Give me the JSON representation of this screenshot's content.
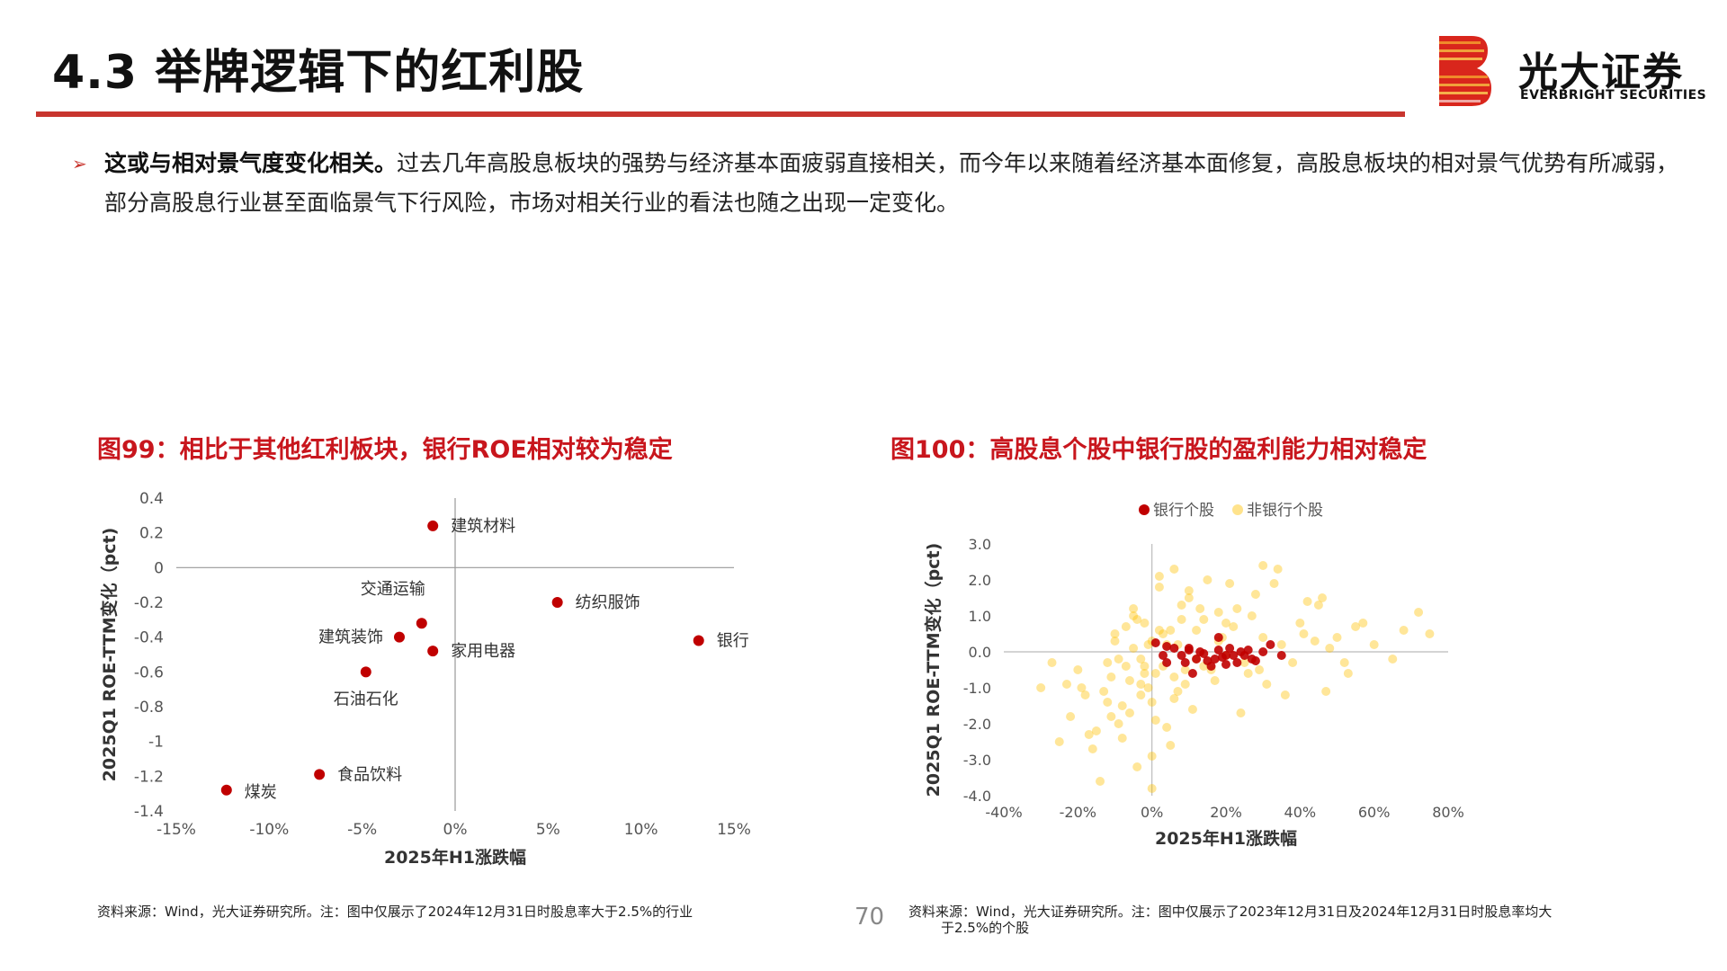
{
  "header": {
    "title": "4.3 举牌逻辑下的红利股",
    "logo_cn": "光大证券",
    "logo_en": "EVERBRIGHT SECURITIES"
  },
  "bullet": {
    "bold": "这或与相对景气度变化相关。",
    "text": "过去几年高股息板块的强势与经济基本面疲弱直接相关，而今年以来随着经济基本面修复，高股息板块的相对景气优势有所减弱，部分高股息行业甚至面临景气下行风险，市场对相关行业的看法也随之出现一定变化。"
  },
  "figure_left": {
    "title": "图99：相比于其他红利板块，银行ROE相对较为稳定",
    "source": "资料来源：Wind，光大证券研究所。注：图中仅展示了2024年12月31日时股息率大于2.5%的行业"
  },
  "figure_right": {
    "title": "图100：高股息个股中银行股的盈利能力相对稳定",
    "source_line1": "资料来源：Wind，光大证券研究所。注：图中仅展示了2023年12月31日及2024年12月31日时股息率均大",
    "source_line2": "于2.5%的个股"
  },
  "page_number": "70",
  "colors": {
    "accent": "#c8352e",
    "fig_title": "#c8161d",
    "bank_point": "#c00000",
    "nonbank_point": "#ffc000"
  },
  "chart_data": [
    {
      "type": "scatter",
      "xlabel": "2025年H1涨跌幅",
      "ylabel": "2025Q1 ROE-TTM变化（pct)",
      "xlim": [
        -0.15,
        0.15
      ],
      "ylim": [
        -1.4,
        0.4
      ],
      "x_ticks": [
        "-15%",
        "-10%",
        "-5%",
        "0%",
        "5%",
        "10%",
        "15%"
      ],
      "y_ticks": [
        "0.4",
        "0.2",
        "0",
        "-0.2",
        "-0.4",
        "-0.6",
        "-0.8",
        "-1",
        "-1.2",
        "-1.4"
      ],
      "points": [
        {
          "label": "建筑材料",
          "x": -0.012,
          "y": 0.24
        },
        {
          "label": "纺织服饰",
          "x": 0.055,
          "y": -0.2
        },
        {
          "label": "交通运输",
          "x": -0.018,
          "y": -0.32
        },
        {
          "label": "建筑装饰",
          "x": -0.03,
          "y": -0.4
        },
        {
          "label": "家用电器",
          "x": -0.012,
          "y": -0.48
        },
        {
          "label": "银行",
          "x": 0.131,
          "y": -0.42
        },
        {
          "label": "石油石化",
          "x": -0.048,
          "y": -0.6
        },
        {
          "label": "食品饮料",
          "x": -0.073,
          "y": -1.19
        },
        {
          "label": "煤炭",
          "x": -0.123,
          "y": -1.28
        }
      ]
    },
    {
      "type": "scatter",
      "xlabel": "2025年H1涨跌幅",
      "ylabel": "2025Q1 ROE-TTM变化（pct)",
      "xlim": [
        -0.4,
        0.8
      ],
      "ylim": [
        -4.0,
        3.0
      ],
      "x_ticks": [
        "-40%",
        "-20%",
        "0%",
        "20%",
        "40%",
        "60%",
        "80%"
      ],
      "y_ticks": [
        "3.0",
        "2.0",
        "1.0",
        "0.0",
        "-1.0",
        "-2.0",
        "-3.0",
        "-4.0"
      ],
      "legend_position": "top-center",
      "series": [
        {
          "name": "银行个股",
          "x": [
            0.01,
            0.04,
            0.06,
            0.08,
            0.1,
            0.11,
            0.12,
            0.14,
            0.15,
            0.17,
            0.18,
            0.19,
            0.2,
            0.21,
            0.23,
            0.24,
            0.25,
            0.26,
            0.28,
            0.3,
            0.32,
            0.35,
            0.04,
            0.09,
            0.13,
            0.16,
            0.2,
            0.22,
            0.27,
            0.03,
            0.1,
            0.18
          ],
          "y": [
            0.25,
            -0.3,
            0.1,
            -0.1,
            0.05,
            -0.6,
            -0.2,
            -0.05,
            -0.25,
            -0.2,
            0.4,
            -0.15,
            -0.1,
            0.1,
            -0.3,
            0.0,
            -0.1,
            0.05,
            -0.25,
            0.0,
            0.2,
            -0.1,
            0.15,
            -0.3,
            0.0,
            -0.4,
            -0.35,
            -0.1,
            -0.2,
            -0.1,
            0.1,
            0.05
          ]
        },
        {
          "name": "非银行个股",
          "x": [
            -0.2,
            -0.18,
            -0.15,
            -0.12,
            -0.1,
            -0.08,
            -0.06,
            -0.05,
            -0.04,
            -0.03,
            -0.02,
            -0.01,
            0.0,
            0.01,
            0.02,
            0.03,
            0.05,
            0.06,
            0.07,
            0.09,
            0.1,
            0.12,
            0.14,
            0.16,
            0.18,
            0.2,
            0.22,
            0.25,
            0.28,
            0.3,
            0.33,
            0.36,
            0.4,
            0.45,
            0.5,
            0.52,
            0.55,
            0.6,
            0.65,
            0.72,
            0.75,
            -0.25,
            -0.22,
            -0.16,
            -0.13,
            -0.11,
            -0.09,
            -0.07,
            -0.06,
            -0.04,
            -0.02,
            0.0,
            0.02,
            0.04,
            0.08,
            0.11,
            0.15,
            0.19,
            0.24,
            0.27,
            0.31,
            0.38,
            0.42,
            0.48,
            0.53,
            -0.14,
            -0.1,
            -0.08,
            -0.05,
            -0.03,
            -0.01,
            0.01,
            0.03,
            0.06,
            0.09,
            0.13,
            0.17,
            0.21,
            0.26,
            0.34,
            0.44,
            -0.3,
            -0.27,
            -0.19,
            -0.12,
            -0.07,
            0.0,
            0.05,
            0.12,
            -0.02,
            0.04,
            0.07,
            0.1,
            0.2,
            0.3,
            0.46,
            0.57,
            0.68,
            -0.23,
            -0.17,
            -0.11,
            -0.09,
            -0.05,
            -0.03,
            0.0,
            0.02,
            0.06,
            0.08,
            0.14,
            0.18,
            0.23,
            0.29,
            0.35,
            0.41,
            0.47
          ],
          "y": [
            -0.5,
            -1.2,
            -2.2,
            -0.3,
            0.5,
            -1.5,
            -0.8,
            1.2,
            -3.2,
            -0.2,
            0.8,
            -1.0,
            0.3,
            -0.6,
            1.8,
            -0.4,
            0.6,
            -1.3,
            0.2,
            -0.9,
            1.5,
            -0.2,
            0.9,
            -0.5,
            1.1,
            -0.1,
            0.7,
            -0.3,
            1.6,
            0.4,
            1.9,
            -1.2,
            0.8,
            1.3,
            0.4,
            -0.3,
            0.7,
            0.2,
            -0.2,
            1.1,
            0.5,
            -2.5,
            -1.8,
            -2.7,
            -1.1,
            -0.7,
            -2.0,
            -0.4,
            -1.7,
            0.9,
            -0.6,
            -1.4,
            2.1,
            -2.1,
            1.3,
            -1.6,
            2.0,
            0.4,
            -1.7,
            1.0,
            -0.9,
            -0.3,
            1.4,
            0.1,
            -0.6,
            -3.6,
            0.3,
            -2.4,
            1.0,
            -0.9,
            0.2,
            -1.9,
            0.5,
            2.3,
            -0.5,
            1.2,
            -0.8,
            1.9,
            -0.6,
            2.3,
            0.3,
            -1.0,
            -0.3,
            -1.0,
            -1.4,
            0.7,
            -3.8,
            -2.6,
            0.6,
            -0.4,
            0.2,
            -1.1,
            1.7,
            0.8,
            2.4,
            1.5,
            0.8,
            0.6,
            -0.9,
            -2.3,
            -1.8,
            -0.2,
            0.1,
            -1.2,
            -2.9,
            0.6,
            -0.7,
            0.9,
            -0.4,
            0.3,
            1.2,
            -0.5,
            0.2,
            0.5,
            -1.1
          ]
        }
      ]
    }
  ]
}
